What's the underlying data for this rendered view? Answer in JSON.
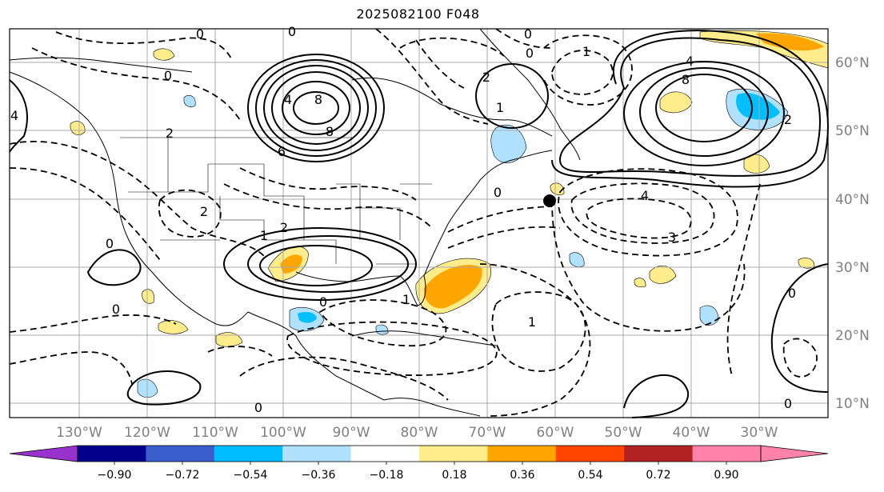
{
  "title": "2025082100 F048",
  "map": {
    "longitude_labels": [
      "130°W",
      "120°W",
      "110°W",
      "100°W",
      "90°W",
      "80°W",
      "70°W",
      "60°W",
      "50°W",
      "40°W",
      "30°W"
    ],
    "latitude_labels": [
      "60°N",
      "50°N",
      "40°N",
      "30°N",
      "20°N",
      "10°N"
    ],
    "contour_labels": [
      "0",
      "1",
      "2",
      "3",
      "4",
      "6",
      "8",
      "-1",
      "-2",
      "-3",
      "-4",
      "-6"
    ],
    "marker": "black-dot"
  },
  "colorbar": {
    "tick_labels": [
      "−0.90",
      "−0.72",
      "−0.54",
      "−0.36",
      "−0.18",
      "0.18",
      "0.36",
      "0.54",
      "0.72",
      "0.90"
    ],
    "colors": [
      "#9932cc",
      "#00008b",
      "#3a5fcd",
      "#00bfff",
      "#b0e2ff",
      "#ffffff",
      "#ffec8b",
      "#ffa500",
      "#ff4500",
      "#b22222",
      "#ff82ab"
    ]
  }
}
